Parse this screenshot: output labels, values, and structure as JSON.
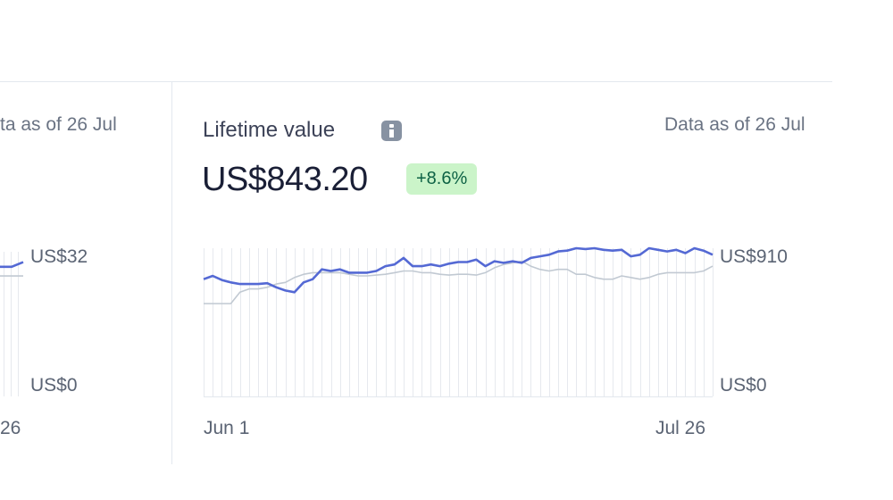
{
  "left_card": {
    "as_of": "ta as of 26 Jul",
    "y_max_label": "US$32",
    "y_min_label": "US$0",
    "x_end_label": "26"
  },
  "card": {
    "title": "Lifetime value",
    "as_of": "Data as of 26 Jul",
    "value": "US$843.20",
    "change": "+8.6%"
  },
  "chart_data": {
    "type": "line",
    "title": "",
    "xlabel": "",
    "ylabel": "",
    "ylim": [
      0,
      910
    ],
    "y_tick_labels": [
      "US$910",
      "US$0"
    ],
    "x_tick_labels": [
      "Jun 1",
      "Jul 26"
    ],
    "grid": true,
    "series": [
      {
        "color": "#5469d4",
        "values": [
          720,
          740,
          715,
          700,
          690,
          690,
          690,
          695,
          670,
          650,
          640,
          700,
          720,
          780,
          770,
          780,
          760,
          760,
          760,
          770,
          800,
          810,
          850,
          800,
          800,
          810,
          800,
          815,
          825,
          825,
          840,
          800,
          830,
          820,
          830,
          820,
          850,
          860,
          870,
          890,
          895,
          910,
          905,
          910,
          900,
          895,
          900,
          860,
          870,
          910,
          900,
          890,
          900,
          880,
          910,
          895,
          870
        ]
      },
      {
        "color": "#c1c9d2",
        "values": [
          570,
          570,
          570,
          570,
          640,
          660,
          660,
          670,
          690,
          700,
          730,
          750,
          760,
          760,
          760,
          760,
          750,
          740,
          740,
          745,
          750,
          760,
          770,
          770,
          760,
          760,
          750,
          745,
          750,
          750,
          745,
          760,
          790,
          810,
          820,
          830,
          800,
          780,
          770,
          780,
          780,
          750,
          750,
          730,
          720,
          720,
          740,
          730,
          720,
          730,
          750,
          760,
          760,
          760,
          760,
          770,
          800
        ]
      }
    ]
  },
  "left_chart_data": {
    "type": "line",
    "series": [
      {
        "color": "#5469d4",
        "values": [
          28,
          28,
          29
        ]
      },
      {
        "color": "#c1c9d2",
        "values": [
          26,
          26,
          26
        ]
      }
    ]
  }
}
